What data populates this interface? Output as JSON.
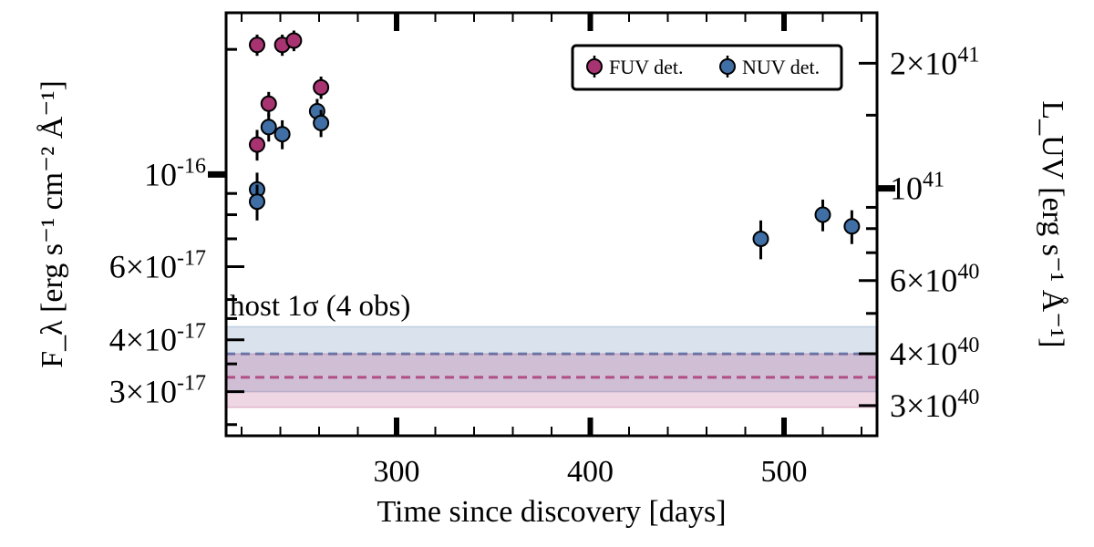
{
  "chart_data": {
    "type": "scatter",
    "xlabel": "Time since discovery [days]",
    "ylabel_left": "F_λ [erg s⁻¹ cm⁻² Å⁻¹]",
    "ylabel_right": "L_UV [erg s⁻¹ Å⁻¹]",
    "xlim": [
      212,
      548
    ],
    "ylim_left": [
      2.35e-17,
      2.45e-16
    ],
    "yscale": "log",
    "grid": false,
    "legend_position": "top-right",
    "x_ticks": [
      {
        "value": 300,
        "label": "300"
      },
      {
        "value": 400,
        "label": "400"
      },
      {
        "value": 500,
        "label": "500"
      }
    ],
    "y_left_ticks": [
      {
        "value": 1e-16,
        "base": "10",
        "exp": "-16"
      },
      {
        "value": 6e-17,
        "base": "6×10",
        "exp": "-17"
      },
      {
        "value": 4e-17,
        "base": "4×10",
        "exp": "-17"
      },
      {
        "value": 3e-17,
        "base": "3×10",
        "exp": "-17"
      }
    ],
    "y_right_ticks": [
      {
        "value": 2e+41,
        "base": "2×10",
        "exp": "41"
      },
      {
        "value": 1e+41,
        "base": "10",
        "exp": "41"
      },
      {
        "value": 6e+40,
        "base": "6×10",
        "exp": "40"
      },
      {
        "value": 4e+40,
        "base": "4×10",
        "exp": "40"
      },
      {
        "value": 3e+40,
        "base": "3×10",
        "exp": "40"
      }
    ],
    "host_band_label": "host 1σ (4 obs)",
    "series": [
      {
        "name": "FUV det.",
        "color": "#a83371",
        "points": [
          {
            "x": 228,
            "y": 2.05e-16,
            "err": 1.2e-17
          },
          {
            "x": 228,
            "y": 1.18e-16,
            "err": 1e-17
          },
          {
            "x": 234,
            "y": 1.48e-16,
            "err": 1e-17
          },
          {
            "x": 241,
            "y": 2.05e-16,
            "err": 1.2e-17
          },
          {
            "x": 247,
            "y": 2.1e-16,
            "err": 1.2e-17
          },
          {
            "x": 261,
            "y": 1.62e-16,
            "err": 1e-17
          }
        ],
        "host_level": 3.25e-17,
        "host_band": [
          2.75e-17,
          3.7e-17
        ]
      },
      {
        "name": "NUV det.",
        "color": "#3f6fa5",
        "points": [
          {
            "x": 228,
            "y": 9.2e-17,
            "err": 9e-18
          },
          {
            "x": 228,
            "y": 8.6e-17,
            "err": 8.5e-18
          },
          {
            "x": 234,
            "y": 1.3e-16,
            "err": 1e-17
          },
          {
            "x": 241,
            "y": 1.25e-16,
            "err": 1e-17
          },
          {
            "x": 259,
            "y": 1.42e-16,
            "err": 1e-17
          },
          {
            "x": 261,
            "y": 1.33e-16,
            "err": 1e-17
          },
          {
            "x": 488,
            "y": 7e-17,
            "err": 7.5e-18
          },
          {
            "x": 520,
            "y": 8e-17,
            "err": 7e-18
          },
          {
            "x": 535,
            "y": 7.5e-17,
            "err": 7e-18
          }
        ],
        "host_level": 3.7e-17,
        "host_band": [
          3e-17,
          4.3e-17
        ]
      }
    ]
  }
}
